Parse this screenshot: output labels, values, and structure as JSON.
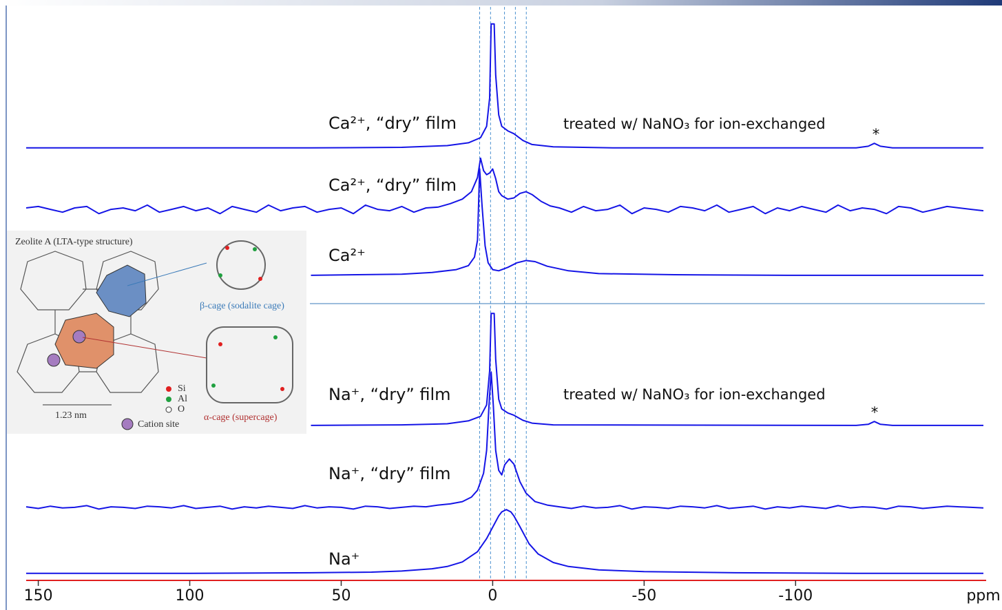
{
  "chart_data": {
    "type": "line",
    "xlabel": "ppm",
    "xlim": [
      154,
      -162
    ],
    "ylim": [
      0,
      100
    ],
    "xticks": [
      150,
      100,
      50,
      0,
      -50,
      -100
    ],
    "reference_lines": [
      4.3,
      0.7,
      -3.9,
      -7.5,
      -11.1
    ],
    "axis_color": "#e02020",
    "series": [
      {
        "name": "Ca²⁺, “dry” film",
        "color": "#1414e6",
        "x": [
          154,
          60,
          30,
          15,
          8,
          4,
          2,
          1,
          0.5,
          -0.5,
          -1,
          -2,
          -3,
          -5,
          -7,
          -10,
          -13,
          -20,
          -40,
          -120,
          -124,
          -126,
          -128,
          -132,
          -162
        ],
        "values": [
          75.2,
          75.2,
          75.3,
          75.6,
          76.1,
          77,
          79,
          84,
          97,
          97,
          88,
          81,
          79,
          78.2,
          77.7,
          76.5,
          75.8,
          75.4,
          75.2,
          75.2,
          75.5,
          76.0,
          75.5,
          75.2,
          75.2
        ]
      },
      {
        "name": "Ca²⁺, “dry” film",
        "color": "#1414e6",
        "x": [
          154,
          150,
          146,
          142,
          138,
          134,
          130,
          126,
          122,
          118,
          114,
          110,
          106,
          102,
          98,
          94,
          90,
          86,
          82,
          78,
          74,
          70,
          66,
          62,
          58,
          54,
          50,
          46,
          42,
          38,
          34,
          30,
          26,
          22,
          18,
          14,
          10,
          7,
          5,
          4,
          3,
          2,
          1,
          0,
          -1,
          -2,
          -3,
          -5,
          -7,
          -9,
          -11,
          -13,
          -16,
          -19,
          -22,
          -26,
          -30,
          -34,
          -38,
          -42,
          -46,
          -50,
          -54,
          -58,
          -62,
          -66,
          -70,
          -74,
          -78,
          -82,
          -86,
          -90,
          -94,
          -98,
          -102,
          -106,
          -110,
          -114,
          -118,
          -122,
          -126,
          -130,
          -134,
          -138,
          -142,
          -146,
          -150,
          -154,
          -158,
          -162
        ],
        "values": [
          64.65,
          64.9,
          64.4,
          63.9,
          64.65,
          64.9,
          63.65,
          64.4,
          64.65,
          64.15,
          65.15,
          63.9,
          64.4,
          64.9,
          64.15,
          64.65,
          63.65,
          64.9,
          64.4,
          63.9,
          65.15,
          64.15,
          64.65,
          64.9,
          63.9,
          64.4,
          64.65,
          63.65,
          65.15,
          64.4,
          64.15,
          64.9,
          63.9,
          64.65,
          64.8,
          65.4,
          66.2,
          67.5,
          70,
          73.4,
          71.2,
          70.5,
          70.8,
          71.5,
          69.8,
          67.5,
          66.8,
          66.2,
          66.4,
          67.2,
          67.5,
          67,
          65.8,
          65.0,
          64.65,
          63.9,
          64.9,
          64.15,
          64.4,
          65.15,
          63.65,
          64.65,
          64.4,
          63.9,
          64.9,
          64.65,
          64.15,
          65.15,
          63.9,
          64.4,
          64.9,
          63.65,
          64.65,
          64.15,
          64.9,
          64.4,
          63.9,
          65.15,
          64.15,
          64.65,
          64.4,
          63.65,
          64.9,
          64.65,
          63.9,
          64.4,
          64.9,
          64.65,
          64.4,
          64.15
        ]
      },
      {
        "name": "Ca²⁺",
        "color": "#1414e6",
        "x": [
          60,
          30,
          20,
          12,
          8,
          6,
          5,
          4.3,
          3.5,
          2.5,
          1.5,
          0,
          -2,
          -5,
          -8,
          -11,
          -14,
          -18,
          -25,
          -35,
          -60,
          -100,
          -162
        ],
        "values": [
          52.8,
          53,
          53.3,
          53.8,
          54.5,
          56,
          59,
          71.5,
          65,
          58,
          55,
          53.8,
          53.6,
          54.2,
          55,
          55.4,
          55.2,
          54.4,
          53.6,
          53.1,
          52.9,
          52.8,
          52.8
        ]
      },
      {
        "name": "Na⁺, “dry” film",
        "color": "#1414e6",
        "x": [
          60,
          30,
          15,
          8,
          4,
          2,
          1,
          0.5,
          -0.5,
          -1,
          -2,
          -3,
          -5,
          -7,
          -10,
          -13,
          -20,
          -120,
          -124,
          -126,
          -128,
          -132,
          -162
        ],
        "values": [
          26.4,
          26.5,
          26.7,
          27.2,
          28,
          30,
          36,
          46.1,
          46.1,
          38,
          31,
          29.3,
          28.6,
          28.2,
          27.3,
          26.8,
          26.5,
          26.4,
          26.6,
          27.1,
          26.6,
          26.4,
          26.4
        ]
      },
      {
        "name": "Na⁺, “dry” film",
        "color": "#1414e6",
        "x": [
          154,
          150,
          146,
          142,
          138,
          134,
          130,
          126,
          122,
          118,
          114,
          110,
          106,
          102,
          98,
          94,
          90,
          86,
          82,
          78,
          74,
          70,
          66,
          62,
          58,
          54,
          50,
          46,
          42,
          38,
          34,
          30,
          26,
          22,
          18,
          14,
          10,
          7,
          5,
          3,
          2,
          1.2,
          0.5,
          -0.2,
          -1,
          -2,
          -3,
          -4,
          -5.5,
          -7,
          -9,
          -11,
          -14,
          -18,
          -22,
          -26,
          -30,
          -34,
          -38,
          -42,
          -46,
          -50,
          -54,
          -58,
          -62,
          -66,
          -70,
          -74,
          -78,
          -82,
          -86,
          -90,
          -94,
          -98,
          -102,
          -106,
          -110,
          -114,
          -118,
          -122,
          -126,
          -130,
          -134,
          -138,
          -142,
          -146,
          -150,
          -154,
          -158,
          -162
        ],
        "values": [
          12.1,
          11.8,
          12.2,
          11.9,
          12.0,
          12.3,
          11.7,
          12.1,
          12.0,
          11.8,
          12.2,
          12.1,
          11.9,
          12.3,
          11.8,
          12.0,
          12.2,
          11.7,
          12.1,
          11.9,
          12.2,
          12.0,
          11.8,
          12.3,
          11.9,
          12.1,
          12.0,
          11.7,
          12.2,
          12.1,
          11.8,
          12.0,
          12.2,
          12.1,
          12.4,
          12.6,
          13.0,
          13.8,
          15.0,
          18.0,
          22,
          30,
          35.8,
          30,
          22,
          18.5,
          17.7,
          19.5,
          20.5,
          19.6,
          16.5,
          14.5,
          13.0,
          12.4,
          12.1,
          11.8,
          12.2,
          11.9,
          12.0,
          12.3,
          11.7,
          12.1,
          12.0,
          11.8,
          12.2,
          12.1,
          11.9,
          12.3,
          11.8,
          12.0,
          12.2,
          11.7,
          12.1,
          11.9,
          12.2,
          12.0,
          11.8,
          12.3,
          11.9,
          12.1,
          12.0,
          11.7,
          12.2,
          12.1,
          11.8,
          12.0,
          12.2,
          12.1,
          12.0,
          11.9
        ]
      },
      {
        "name": "Na⁺",
        "color": "#1414e6",
        "x": [
          154,
          100,
          60,
          40,
          30,
          20,
          15,
          10,
          5,
          2,
          0,
          -2,
          -3,
          -4.5,
          -6,
          -7,
          -9,
          -12,
          -15,
          -20,
          -25,
          -35,
          -50,
          -80,
          -120,
          -162
        ],
        "values": [
          0.4,
          0.4,
          0.5,
          0.6,
          0.8,
          1.2,
          1.6,
          2.4,
          4.2,
          6.5,
          8.5,
          10.5,
          11.2,
          11.6,
          11.2,
          10.5,
          8.6,
          5.6,
          3.8,
          2.3,
          1.6,
          1.0,
          0.7,
          0.5,
          0.4,
          0.4
        ]
      }
    ],
    "annotations": [
      "treated w/ NaNO₃ for ion-exchanged",
      "*",
      "treated w/ NaNO₃ for ion-exchanged",
      "*"
    ],
    "inset": {
      "title": "Zeolite A (LTA-type structure)",
      "beta_cage": "β-cage (sodalite cage)",
      "alpha_cage": "α-cage (supercage)",
      "scale": "1.23 nm",
      "legend": [
        "Si",
        "Al",
        "O",
        "Cation site"
      ]
    }
  }
}
